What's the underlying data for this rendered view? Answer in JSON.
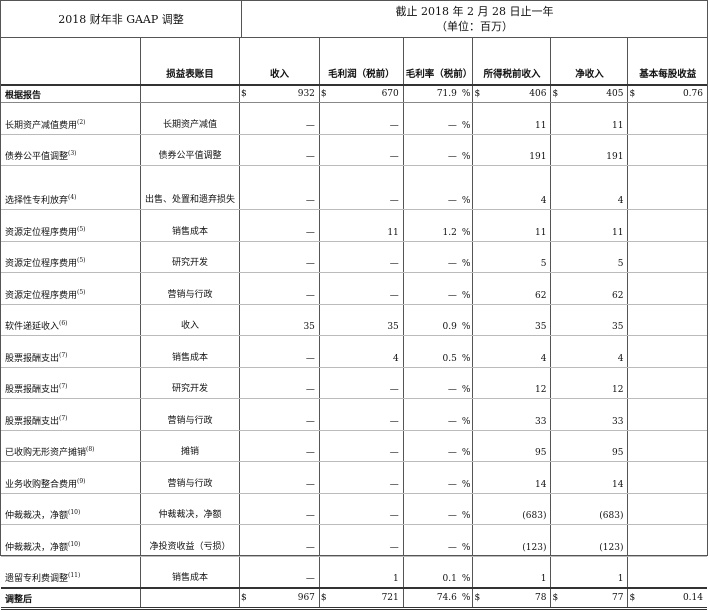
{
  "header": {
    "left_title": "2018 财年非 GAAP 调整",
    "right_title": "截止 2018 年 2 月 28 日止一年",
    "right_subtitle": "（单位：百万）"
  },
  "columns": {
    "item": "损益表账目",
    "revenue": "收入",
    "gross_profit": "毛利润（税前）",
    "gross_margin": "毛利率（税前）",
    "pretax_income": "所得税前收入",
    "net_income": "净收入",
    "eps": "基本每股收益"
  },
  "currency": "$",
  "percent": "%",
  "dash": "—",
  "reported": {
    "label": "根据报告",
    "revenue": "932",
    "gross_profit": "670",
    "gross_margin": "71.9",
    "pretax_income": "406",
    "net_income": "405",
    "eps": "0.76"
  },
  "rows": [
    {
      "label": "长期资产减值费用",
      "note": "(2)",
      "item": "长期资产减值",
      "revenue": "—",
      "gross_profit": "—",
      "gross_margin": "—",
      "pretax_income": "11",
      "net_income": "11",
      "eps": ""
    },
    {
      "label": "债券公平值调整",
      "note": "(3)",
      "item": "债券公平值调整",
      "revenue": "—",
      "gross_profit": "—",
      "gross_margin": "—",
      "pretax_income": "191",
      "net_income": "191",
      "eps": ""
    },
    {
      "label": "选择性专利放弃",
      "note": "(4)",
      "item": "出售、处置和遗弃损失",
      "revenue": "—",
      "gross_profit": "—",
      "gross_margin": "—",
      "pretax_income": "4",
      "net_income": "4",
      "eps": "",
      "tall": true
    },
    {
      "label": "资源定位程序费用",
      "note": "(5)",
      "item": "销售成本",
      "revenue": "—",
      "gross_profit": "11",
      "gross_margin": "1.2",
      "pretax_income": "11",
      "net_income": "11",
      "eps": ""
    },
    {
      "label": "资源定位程序费用",
      "note": "(5)",
      "item": "研究开发",
      "revenue": "—",
      "gross_profit": "—",
      "gross_margin": "—",
      "pretax_income": "5",
      "net_income": "5",
      "eps": ""
    },
    {
      "label": "资源定位程序费用",
      "note": "(5)",
      "item": "营销与行政",
      "revenue": "—",
      "gross_profit": "—",
      "gross_margin": "—",
      "pretax_income": "62",
      "net_income": "62",
      "eps": ""
    },
    {
      "label": "软件递延收入",
      "note": "(6)",
      "item": "收入",
      "revenue": "35",
      "gross_profit": "35",
      "gross_margin": "0.9",
      "pretax_income": "35",
      "net_income": "35",
      "eps": ""
    },
    {
      "label": "股票报酬支出",
      "note": "(7)",
      "item": "销售成本",
      "revenue": "—",
      "gross_profit": "4",
      "gross_margin": "0.5",
      "pretax_income": "4",
      "net_income": "4",
      "eps": ""
    },
    {
      "label": "股票报酬支出",
      "note": "(7)",
      "item": "研究开发",
      "revenue": "—",
      "gross_profit": "—",
      "gross_margin": "—",
      "pretax_income": "12",
      "net_income": "12",
      "eps": ""
    },
    {
      "label": "股票报酬支出",
      "note": "(7)",
      "item": "营销与行政",
      "revenue": "—",
      "gross_profit": "—",
      "gross_margin": "—",
      "pretax_income": "33",
      "net_income": "33",
      "eps": ""
    },
    {
      "label": "已收购无形资产摊销",
      "note": "(8)",
      "item": "摊销",
      "revenue": "—",
      "gross_profit": "—",
      "gross_margin": "—",
      "pretax_income": "95",
      "net_income": "95",
      "eps": ""
    },
    {
      "label": "业务收购整合费用",
      "note": "(9)",
      "item": "营销与行政",
      "revenue": "—",
      "gross_profit": "—",
      "gross_margin": "—",
      "pretax_income": "14",
      "net_income": "14",
      "eps": ""
    },
    {
      "label": "仲裁裁决，净额",
      "note": "(10)",
      "item": "仲裁裁决，净额",
      "revenue": "—",
      "gross_profit": "—",
      "gross_margin": "—",
      "pretax_income": "(683)",
      "net_income": "(683)",
      "eps": ""
    },
    {
      "label": "仲裁裁决，净额",
      "note": "(10)",
      "item": "净投资收益（亏损）",
      "revenue": "—",
      "gross_profit": "—",
      "gross_margin": "—",
      "pretax_income": "(123)",
      "net_income": "(123)",
      "eps": ""
    },
    {
      "label": "遗留专利费调整",
      "note": "(11)",
      "item": "销售成本",
      "revenue": "—",
      "gross_profit": "1",
      "gross_margin": "0.1",
      "pretax_income": "1",
      "net_income": "1",
      "eps": ""
    }
  ],
  "adjusted": {
    "label": "调整后",
    "revenue": "967",
    "gross_profit": "721",
    "gross_margin": "74.6",
    "pretax_income": "78",
    "net_income": "77",
    "eps": "0.14"
  }
}
